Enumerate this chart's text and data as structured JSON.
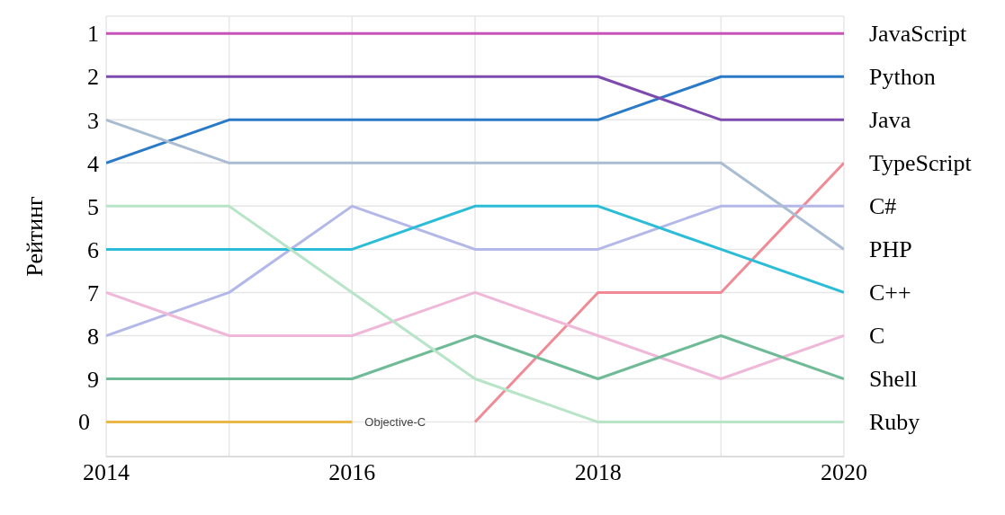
{
  "chart_data": {
    "type": "line",
    "ylabel": "Рейтинг",
    "x": [
      2014,
      2015,
      2016,
      2017,
      2018,
      2019,
      2020
    ],
    "xlim": [
      2014,
      2020
    ],
    "xticks": [
      2014,
      {
        "value": 2015,
        "label": null
      },
      2016,
      {
        "value": 2017,
        "label": null
      },
      2018,
      {
        "value": 2019,
        "label": null
      },
      2020
    ],
    "ylim": [
      10.8,
      0.6
    ],
    "yticks": [
      1,
      2,
      3,
      4,
      5,
      6,
      7,
      8,
      9,
      {
        "value": 10,
        "label": null
      }
    ],
    "annotations": [
      {
        "text": "0",
        "x": 2014,
        "y": 10
      }
    ],
    "grid": true,
    "legend": false,
    "marker": "none",
    "line_style": "solid",
    "series": [
      {
        "name": "JavaScript",
        "color": "#c653b8",
        "values": [
          1,
          1,
          1,
          1,
          1,
          1,
          1
        ]
      },
      {
        "name": "Python",
        "color": "#2a7ac8",
        "values": [
          4,
          3,
          3,
          3,
          3,
          2,
          2
        ]
      },
      {
        "name": "Java",
        "color": "#7d4bb0",
        "values": [
          2,
          2,
          2,
          2,
          2,
          3,
          3
        ]
      },
      {
        "name": "TypeScript",
        "color": "#f08a94",
        "values": [
          null,
          null,
          null,
          10,
          7,
          7,
          4
        ]
      },
      {
        "name": "C#",
        "color": "#b4b8e8",
        "values": [
          8,
          7,
          5,
          6,
          6,
          5,
          5
        ]
      },
      {
        "name": "PHP",
        "color": "#a9bcd2",
        "values": [
          3,
          4,
          4,
          4,
          4,
          4,
          6
        ]
      },
      {
        "name": "C++",
        "color": "#2bbcd8",
        "values": [
          6,
          6,
          6,
          5,
          5,
          6,
          7
        ]
      },
      {
        "name": "C",
        "color": "#f0b8d8",
        "values": [
          7,
          8,
          8,
          7,
          8,
          9,
          8
        ]
      },
      {
        "name": "Shell",
        "color": "#6fbb98",
        "values": [
          9,
          9,
          9,
          8,
          9,
          8,
          9
        ]
      },
      {
        "name": "Ruby",
        "color": "#b8e4c8",
        "values": [
          5,
          5,
          7,
          9,
          10,
          10,
          10
        ]
      },
      {
        "name": "Objective-C",
        "color": "#eab84a",
        "values": [
          10,
          10,
          10,
          null,
          null,
          null,
          null
        ]
      }
    ]
  }
}
